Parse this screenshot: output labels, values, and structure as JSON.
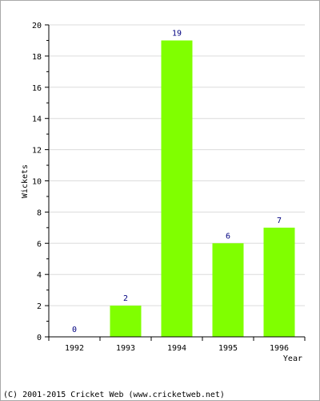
{
  "chart_data": {
    "type": "bar",
    "categories": [
      "1992",
      "1993",
      "1994",
      "1995",
      "1996"
    ],
    "values": [
      0,
      2,
      19,
      6,
      7
    ],
    "data_labels": [
      "0",
      "2",
      "19",
      "6",
      "7"
    ],
    "title": "",
    "xlabel": "Year",
    "ylabel": "Wickets",
    "ylim": [
      0,
      20
    ],
    "y_ticks": [
      0,
      2,
      4,
      6,
      8,
      10,
      12,
      14,
      16,
      18,
      20
    ],
    "grid": true,
    "legend": "none",
    "colors": {
      "bar": "#80ff00",
      "grid": "#dcdcdc",
      "axis": "#000000",
      "data_label": "#000080",
      "border": "#a9a9a9"
    }
  },
  "footer": {
    "text": "(C) 2001-2015 Cricket Web (www.cricketweb.net)"
  }
}
